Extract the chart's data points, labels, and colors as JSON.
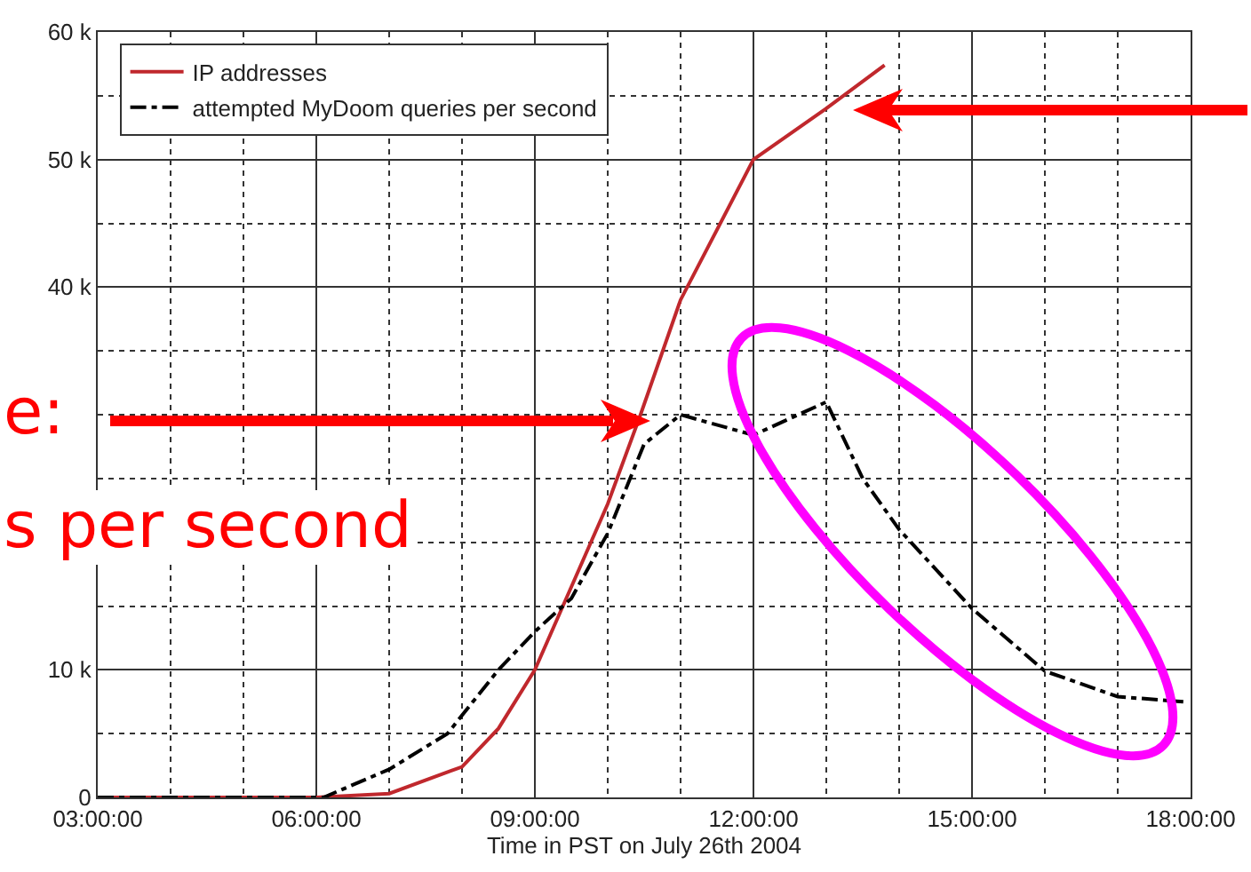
{
  "chart_data": {
    "type": "line",
    "xlabel": "Time in PST on July 26th 2004",
    "series": [
      {
        "name": "IP addresses",
        "color": "#c0282d",
        "line_style": "solid",
        "x": [
          3,
          6,
          7,
          8,
          8.5,
          9,
          9.5,
          10,
          10.45,
          11,
          12,
          13,
          13.8
        ],
        "values": [
          0,
          0,
          300,
          2400,
          5400,
          10000,
          16500,
          23000,
          30000,
          39000,
          50000,
          54000,
          57400
        ]
      },
      {
        "name": "attempted MyDoom queries per second",
        "color": "#000000",
        "line_style": "dashed",
        "x": [
          3,
          6.1,
          7,
          7.8,
          8.5,
          9,
          9.5,
          10,
          10.5,
          11,
          12,
          13,
          13.5,
          14,
          15,
          16,
          17,
          17.9
        ],
        "values": [
          0,
          0,
          2200,
          5000,
          10000,
          13000,
          15600,
          20700,
          27700,
          30000,
          28400,
          31000,
          25000,
          21000,
          14800,
          9900,
          7900,
          7500
        ]
      }
    ],
    "xlim": [
      3,
      18
    ],
    "xticks": [
      {
        "value": 3,
        "label": "03:00:00"
      },
      {
        "value": 4,
        "label": null
      },
      {
        "value": 5,
        "label": null
      },
      {
        "value": 6,
        "label": "06:00:00"
      },
      {
        "value": 7,
        "label": null
      },
      {
        "value": 8,
        "label": null
      },
      {
        "value": 9,
        "label": "09:00:00"
      },
      {
        "value": 10,
        "label": null
      },
      {
        "value": 11,
        "label": null
      },
      {
        "value": 12,
        "label": "12:00:00"
      },
      {
        "value": 13,
        "label": null
      },
      {
        "value": 14,
        "label": null
      },
      {
        "value": 15,
        "label": "15:00:00"
      },
      {
        "value": 16,
        "label": null
      },
      {
        "value": 17,
        "label": null
      },
      {
        "value": 18,
        "label": "18:00:00"
      }
    ],
    "ylim": [
      0,
      60000
    ],
    "yticks": [
      0,
      {
        "value": 5000,
        "label": null
      },
      {
        "value": 10000,
        "label": "10 k"
      },
      {
        "value": 15000,
        "label": null
      },
      {
        "value": 20000,
        "label": null
      },
      {
        "value": 25000,
        "label": null
      },
      {
        "value": 30000,
        "label": null
      },
      {
        "value": 35000,
        "label": null
      },
      {
        "value": 40000,
        "label": "40 k"
      },
      {
        "value": 45000,
        "label": null
      },
      {
        "value": 50000,
        "label": "50 k"
      },
      {
        "value": 55000,
        "label": null
      },
      {
        "value": 60000,
        "label": "60 k"
      }
    ],
    "grid": true,
    "legend": "top left",
    "marker": "none",
    "annotations": [
      "e:",
      "s per second"
    ]
  }
}
